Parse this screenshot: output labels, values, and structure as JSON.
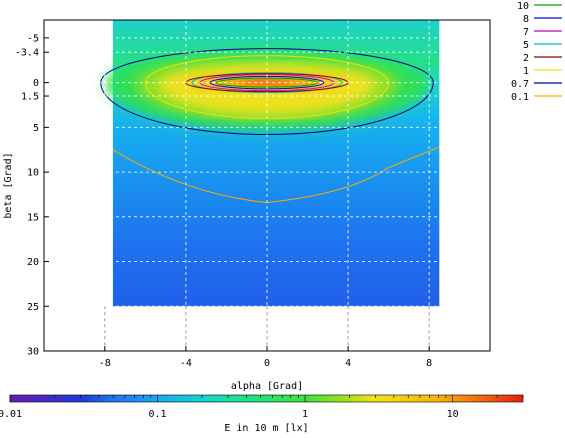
{
  "chart_data": {
    "type": "heatmap",
    "title": "",
    "xlabel": "alpha [Grad]",
    "ylabel": "beta [Grad]",
    "xlim": [
      -11,
      11
    ],
    "ylim": [
      30,
      -7
    ],
    "x_ticks": [
      {
        "value": -8,
        "label": "-8"
      },
      {
        "value": -4,
        "label": "-4"
      },
      {
        "value": 0,
        "label": "0"
      },
      {
        "value": 4,
        "label": "4"
      },
      {
        "value": 8,
        "label": "8"
      }
    ],
    "y_ticks": [
      {
        "value": -5,
        "label": "-5"
      },
      {
        "value": -3.4,
        "label": "-3.4"
      },
      {
        "value": 0,
        "label": "0"
      },
      {
        "value": 1.5,
        "label": "1.5"
      },
      {
        "value": 5,
        "label": "5"
      },
      {
        "value": 10,
        "label": "10"
      },
      {
        "value": 15,
        "label": "15"
      },
      {
        "value": 20,
        "label": "20"
      },
      {
        "value": 25,
        "label": "25"
      },
      {
        "value": 30,
        "label": "30"
      }
    ],
    "grid": true,
    "data_extent": {
      "x": [
        -7.6,
        8.5
      ],
      "y": [
        -7,
        25
      ]
    },
    "contours": [
      {
        "level": "10",
        "value": 10,
        "color": "#00aa00",
        "rx": 2.5,
        "ry_up": 0.5,
        "ry_down": 0.5
      },
      {
        "level": "8",
        "value": 8,
        "color": "#0000ff",
        "rx": 2.8,
        "ry_up": 0.7,
        "ry_down": 0.7
      },
      {
        "level": "7",
        "value": 7,
        "color": "#cc00cc",
        "rx": 3.3,
        "ry_up": 0.9,
        "ry_down": 0.9
      },
      {
        "level": "5",
        "value": 5,
        "color": "#00bbbb",
        "rx": 3.7,
        "ry_up": 1.1,
        "ry_down": 1.1
      },
      {
        "level": "2",
        "value": 2,
        "color": "#990000",
        "rx": 4.0,
        "ry_up": 1.0,
        "ry_down": 1.0
      },
      {
        "level": "1",
        "value": 1,
        "color": "#e6e600",
        "rx": 6.0,
        "ry_up": 3.0,
        "ry_down": 4.0
      },
      {
        "level": "0.7",
        "value": 0.7,
        "color": "#000099",
        "rx": 8.2,
        "ry_up": 3.8,
        "ry_down": 5.8
      },
      {
        "level": "0.1",
        "value": 0.1,
        "color": "#ffaa00",
        "rx": 7.6,
        "ry_up": 0,
        "ry_down": 13.6
      }
    ],
    "colorbar": {
      "label": "E in 10 m [lx]",
      "scale": "log",
      "range": [
        0.01,
        30
      ],
      "ticks": [
        {
          "value": 0.01,
          "label": "0.01"
        },
        {
          "value": 0.1,
          "label": "0.1"
        },
        {
          "value": 1,
          "label": "1"
        },
        {
          "value": 10,
          "label": "10"
        }
      ],
      "stops": [
        {
          "value": 0.01,
          "color": "#6a1bb0"
        },
        {
          "value": 0.03,
          "color": "#1f3ad8"
        },
        {
          "value": 0.05,
          "color": "#1f75f0"
        },
        {
          "value": 0.1,
          "color": "#1aa8f2"
        },
        {
          "value": 0.2,
          "color": "#18d2d0"
        },
        {
          "value": 0.4,
          "color": "#20e08a"
        },
        {
          "value": 1,
          "color": "#3be23b"
        },
        {
          "value": 2,
          "color": "#aee01c"
        },
        {
          "value": 3,
          "color": "#f2e21a"
        },
        {
          "value": 8,
          "color": "#f8b40e"
        },
        {
          "value": 30,
          "color": "#e82010"
        }
      ]
    }
  }
}
